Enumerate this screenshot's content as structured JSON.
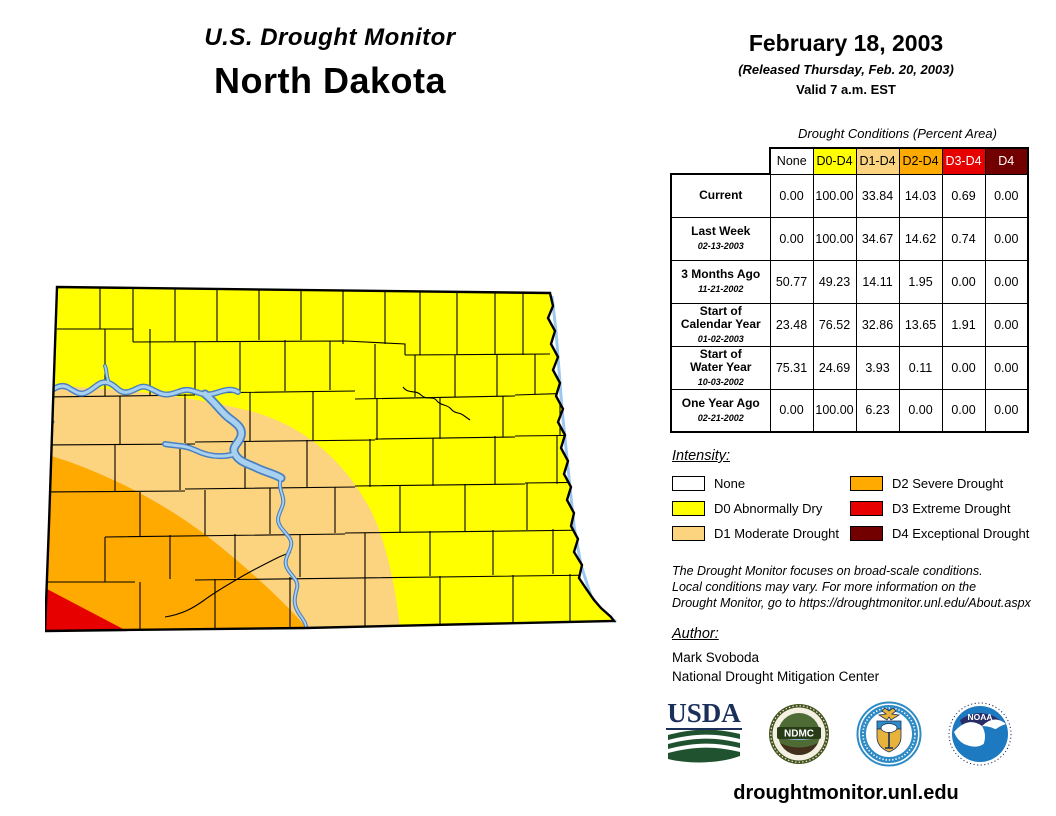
{
  "title": {
    "line1": "U.S. Drought Monitor",
    "line2": "North Dakota"
  },
  "date_block": {
    "date": "February 18, 2003",
    "released": "(Released Thursday, Feb. 20, 2003)",
    "valid": "Valid 7 a.m. EST"
  },
  "table": {
    "caption": "Drought Conditions (Percent Area)",
    "columns": [
      "None",
      "D0-D4",
      "D1-D4",
      "D2-D4",
      "D3-D4",
      "D4"
    ],
    "column_styles": [
      {
        "bg": "#FFFFFF",
        "fg": "#000000"
      },
      {
        "bg": "#FFFF00",
        "fg": "#000000"
      },
      {
        "bg": "#FCD37F",
        "fg": "#000000"
      },
      {
        "bg": "#FFAA00",
        "fg": "#000000"
      },
      {
        "bg": "#E60000",
        "fg": "#FFFFFF"
      },
      {
        "bg": "#730000",
        "fg": "#FFFFFF"
      }
    ],
    "rows": [
      {
        "label": "Current",
        "date": "",
        "values": [
          "0.00",
          "100.00",
          "33.84",
          "14.03",
          "0.69",
          "0.00"
        ]
      },
      {
        "label": "Last Week",
        "date": "02-13-2003",
        "values": [
          "0.00",
          "100.00",
          "34.67",
          "14.62",
          "0.74",
          "0.00"
        ]
      },
      {
        "label": "3 Months Ago",
        "date": "11-21-2002",
        "values": [
          "50.77",
          "49.23",
          "14.11",
          "1.95",
          "0.00",
          "0.00"
        ]
      },
      {
        "label": "Start of\nCalendar Year",
        "date": "01-02-2003",
        "values": [
          "23.48",
          "76.52",
          "32.86",
          "13.65",
          "1.91",
          "0.00"
        ]
      },
      {
        "label": "Start of\nWater Year",
        "date": "10-03-2002",
        "values": [
          "75.31",
          "24.69",
          "3.93",
          "0.11",
          "0.00",
          "0.00"
        ]
      },
      {
        "label": "One Year Ago",
        "date": "02-21-2002",
        "values": [
          "0.00",
          "100.00",
          "6.23",
          "0.00",
          "0.00",
          "0.00"
        ]
      }
    ]
  },
  "legend": {
    "heading": "Intensity:",
    "items": [
      {
        "label": "None",
        "color": "#FFFFFF"
      },
      {
        "label": "D0 Abnormally Dry",
        "color": "#FFFF00"
      },
      {
        "label": "D1 Moderate Drought",
        "color": "#FCD37F"
      },
      {
        "label": "D2 Severe Drought",
        "color": "#FFAA00"
      },
      {
        "label": "D3 Extreme Drought",
        "color": "#E60000"
      },
      {
        "label": "D4 Exceptional Drought",
        "color": "#730000"
      }
    ]
  },
  "disclaimer": {
    "lines": [
      "The Drought Monitor focuses on broad-scale conditions.",
      "Local conditions may vary. For more information on the",
      "Drought Monitor, go to https://droughtmonitor.unl.edu/About.aspx"
    ]
  },
  "author": {
    "heading": "Author:",
    "name": "Mark Svoboda",
    "org": "National Drought Mitigation Center"
  },
  "logos": {
    "usda": "USDA",
    "ndmc": "NDMC",
    "noaa": "NOAA"
  },
  "footer_url": "droughtmonitor.unl.edu",
  "colors": {
    "none": "#FFFFFF",
    "d0": "#FFFF00",
    "d1": "#FCD37F",
    "d2": "#FFAA00",
    "d3": "#E60000",
    "d4": "#730000",
    "river_edge": "#4A7FC1",
    "river_fill": "#A8D1F0",
    "map_border": "#000000"
  }
}
